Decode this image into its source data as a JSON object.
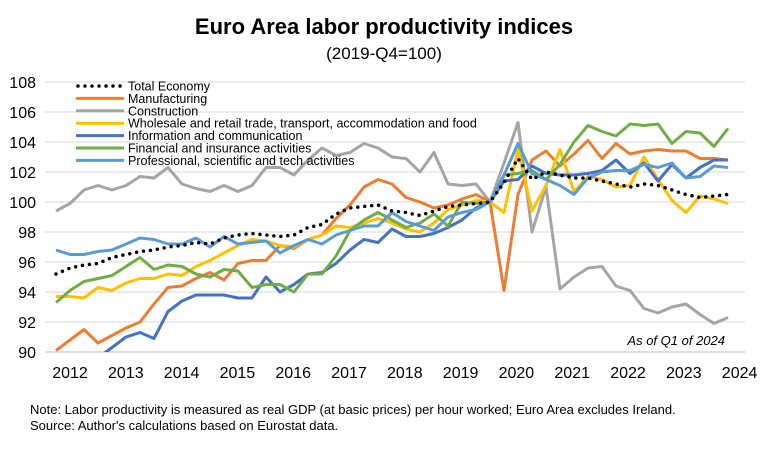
{
  "chart_data": {
    "type": "line",
    "title": "Euro Area labor productivity indices",
    "subtitle": "(2019-Q4=100)",
    "xlabel": "",
    "ylabel": "",
    "ylim": [
      90,
      108
    ],
    "yticks": [
      "90",
      "92",
      "94",
      "96",
      "98",
      "100",
      "102",
      "104",
      "106",
      "108"
    ],
    "xticks": [
      "2012",
      "2013",
      "2014",
      "2015",
      "2016",
      "2017",
      "2018",
      "2019",
      "2020",
      "2021",
      "2022",
      "2023",
      "2024"
    ],
    "grid": "horizontal",
    "legend_position": "top-left",
    "annotation": "As of Q1 of 2024",
    "x": [
      "2012Q1",
      "2012Q2",
      "2012Q3",
      "2012Q4",
      "2013Q1",
      "2013Q2",
      "2013Q3",
      "2013Q4",
      "2014Q1",
      "2014Q2",
      "2014Q3",
      "2014Q4",
      "2015Q1",
      "2015Q2",
      "2015Q3",
      "2015Q4",
      "2016Q1",
      "2016Q2",
      "2016Q3",
      "2016Q4",
      "2017Q1",
      "2017Q2",
      "2017Q3",
      "2017Q4",
      "2018Q1",
      "2018Q2",
      "2018Q3",
      "2018Q4",
      "2019Q1",
      "2019Q2",
      "2019Q3",
      "2019Q4",
      "2020Q1",
      "2020Q2",
      "2020Q3",
      "2020Q4",
      "2021Q1",
      "2021Q2",
      "2021Q3",
      "2021Q4",
      "2022Q1",
      "2022Q2",
      "2022Q3",
      "2022Q4",
      "2023Q1",
      "2023Q2",
      "2023Q3",
      "2023Q4",
      "2024Q1"
    ],
    "series": [
      {
        "name": "Total Economy",
        "color": "#000000",
        "style": "dotted",
        "values": [
          95.2,
          95.6,
          95.8,
          95.9,
          96.3,
          96.5,
          96.7,
          96.8,
          97.0,
          97.1,
          97.3,
          97.2,
          97.6,
          97.8,
          97.9,
          97.8,
          97.7,
          97.8,
          98.3,
          98.5,
          99.2,
          99.6,
          99.7,
          99.8,
          99.4,
          99.3,
          99.1,
          99.4,
          99.7,
          99.8,
          99.9,
          100,
          101.3,
          102.9,
          101.5,
          102.0,
          101.8,
          101.6,
          101.6,
          101.4,
          101.2,
          101.0,
          101.2,
          101.1,
          100.8,
          100.5,
          100.3,
          100.4,
          100.5
        ]
      },
      {
        "name": "Manufacturing",
        "color": "#ED7D31",
        "style": "solid",
        "values": [
          90.1,
          90.8,
          91.5,
          90.6,
          91.1,
          91.6,
          92.0,
          93.2,
          94.3,
          94.4,
          94.9,
          95.3,
          94.8,
          95.9,
          96.1,
          96.1,
          97.1,
          96.9,
          97.5,
          97.8,
          98.9,
          99.8,
          101.0,
          101.5,
          101.2,
          100.3,
          100.0,
          99.6,
          99.8,
          100.2,
          100.5,
          100,
          94.1,
          100.5,
          102.8,
          103.4,
          102.4,
          103.2,
          104.1,
          102.9,
          103.9,
          103.2,
          103.4,
          103.5,
          103.4,
          103.4,
          102.9,
          102.9,
          102.8
        ]
      },
      {
        "name": "Construction",
        "color": "#A5A5A5",
        "style": "solid",
        "values": [
          99.4,
          99.9,
          100.8,
          101.1,
          100.8,
          101.1,
          101.7,
          101.6,
          102.3,
          101.2,
          100.9,
          100.7,
          101.1,
          100.7,
          101.1,
          102.3,
          102.3,
          101.8,
          102.8,
          103.6,
          103.1,
          103.3,
          103.9,
          103.6,
          103.0,
          102.9,
          102.0,
          103.3,
          101.2,
          101.1,
          101.2,
          100,
          102.6,
          105.3,
          98.0,
          101.0,
          94.2,
          95.0,
          95.6,
          95.7,
          94.4,
          94.1,
          92.9,
          92.6,
          93.0,
          93.2,
          92.5,
          91.9,
          92.3
        ]
      },
      {
        "name": "Wholesale and retail trade, transport, accommodation and food",
        "color": "#FFC000",
        "style": "solid",
        "values": [
          93.7,
          93.7,
          93.6,
          94.3,
          94.1,
          94.6,
          94.9,
          94.9,
          95.2,
          95.1,
          95.7,
          96.1,
          96.6,
          97.1,
          97.5,
          97.4,
          97.1,
          97.0,
          97.5,
          97.8,
          98.4,
          98.3,
          98.6,
          98.9,
          98.6,
          98.2,
          98.0,
          98.6,
          99.5,
          99.8,
          100.1,
          100,
          99.3,
          103.5,
          99.4,
          101.1,
          103.5,
          100.7,
          101.7,
          101.5,
          101.0,
          101.1,
          103.0,
          101.5,
          100.1,
          99.3,
          100.4,
          100.2,
          99.9
        ]
      },
      {
        "name": "Information and communication",
        "color": "#4472C4",
        "style": "solid",
        "values": [
          89.0,
          88.8,
          89.2,
          89.6,
          90.3,
          91.0,
          91.3,
          90.9,
          92.7,
          93.4,
          93.8,
          93.8,
          93.8,
          93.6,
          93.6,
          95.0,
          94.0,
          94.5,
          95.2,
          95.3,
          95.9,
          96.8,
          97.5,
          97.3,
          98.2,
          97.7,
          97.7,
          97.9,
          98.3,
          98.8,
          99.6,
          100,
          101.4,
          101.5,
          102.4,
          101.9,
          101.8,
          101.8,
          101.9,
          102.1,
          102.8,
          101.9,
          102.6,
          101.4,
          102.5,
          101.6,
          102.3,
          102.8,
          102.8
        ]
      },
      {
        "name": "Financial and insurance activities",
        "color": "#70AD47",
        "style": "solid",
        "values": [
          93.3,
          94.1,
          94.7,
          94.9,
          95.1,
          95.7,
          96.3,
          95.5,
          95.8,
          95.7,
          95.2,
          95.0,
          95.5,
          95.4,
          94.3,
          94.5,
          94.5,
          94.0,
          95.2,
          95.2,
          96.4,
          98.1,
          98.8,
          99.3,
          98.8,
          98.3,
          98.6,
          99.2,
          98.4,
          100.0,
          99.9,
          100,
          101.8,
          101.9,
          102.1,
          101.5,
          102.5,
          104.0,
          105.1,
          104.7,
          104.4,
          105.2,
          105.1,
          105.2,
          103.9,
          104.7,
          104.6,
          103.7,
          104.9
        ]
      },
      {
        "name": "Professional, scientific and tech activities",
        "color": "#5B9BD5",
        "style": "solid",
        "values": [
          96.8,
          96.5,
          96.5,
          96.7,
          96.8,
          97.2,
          97.6,
          97.5,
          97.2,
          97.2,
          97.6,
          97.0,
          97.7,
          97.2,
          97.3,
          97.4,
          96.6,
          97.1,
          97.5,
          97.2,
          97.8,
          98.1,
          98.4,
          98.4,
          99.3,
          98.7,
          98.4,
          98.1,
          99.0,
          99.3,
          99.5,
          100,
          101.8,
          103.9,
          101.9,
          101.5,
          101.1,
          100.5,
          101.6,
          102.0,
          102.1,
          102.1,
          102.5,
          102.3,
          102.6,
          101.6,
          101.7,
          102.4,
          102.3
        ]
      }
    ]
  },
  "notes": {
    "line1": "Note: Labor productivity is measured as real GDP (at basic prices) per hour worked; Euro Area excludes Ireland.",
    "line2": "Source: Author's calculations based on Eurostat data."
  }
}
